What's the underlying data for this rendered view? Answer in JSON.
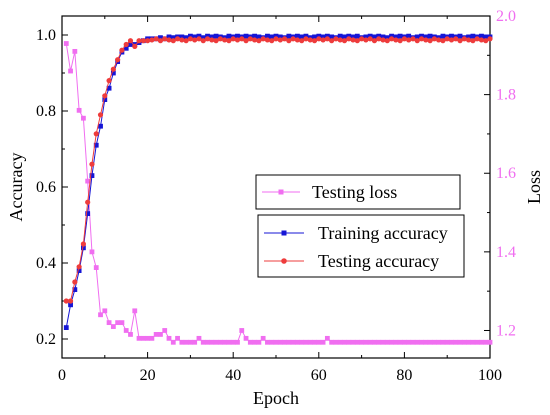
{
  "chart_data": {
    "type": "line",
    "xlabel": "Epoch",
    "ylabel_left": "Accuracy",
    "ylabel_right": "Loss",
    "xlim": [
      0,
      100
    ],
    "ylim_left": [
      0.15,
      1.05
    ],
    "ylim_right": [
      1.13,
      2.0
    ],
    "xticks": [
      0,
      20,
      40,
      60,
      80,
      100
    ],
    "yticks_left": [
      0.2,
      0.4,
      0.6,
      0.8,
      1.0
    ],
    "yticks_right": [
      1.2,
      1.4,
      1.6,
      1.8,
      2.0
    ],
    "xtick_labels": [
      "0",
      "20",
      "40",
      "60",
      "80",
      "100"
    ],
    "ytick_labels_left": [
      "0.2",
      "0.4",
      "0.6",
      "0.8",
      "1.0"
    ],
    "ytick_labels_right": [
      "1.2",
      "1.4",
      "1.6",
      "1.8",
      "2.0"
    ],
    "colors": {
      "training_accuracy": "#1515d6",
      "testing_accuracy": "#ee3c3c",
      "testing_loss": "#f06ef0",
      "right_axis": "#f06ef0",
      "axis": "#000000"
    },
    "legend_loss": {
      "label": "Testing loss"
    },
    "legend_acc": [
      {
        "label": "Training accuracy"
      },
      {
        "label": "Testing accuracy"
      }
    ],
    "series": [
      {
        "name": "Training accuracy",
        "axis": "left",
        "marker": "square",
        "x": [
          1,
          2,
          3,
          4,
          5,
          6,
          7,
          8,
          9,
          10,
          11,
          12,
          13,
          14,
          15,
          16,
          17,
          18,
          19,
          20,
          21,
          22,
          23,
          24,
          25,
          26,
          27,
          28,
          29,
          30,
          31,
          32,
          33,
          34,
          35,
          36,
          37,
          38,
          39,
          40,
          41,
          42,
          43,
          44,
          45,
          46,
          47,
          48,
          49,
          50,
          51,
          52,
          53,
          54,
          55,
          56,
          57,
          58,
          59,
          60,
          61,
          62,
          63,
          64,
          65,
          66,
          67,
          68,
          69,
          70,
          71,
          72,
          73,
          74,
          75,
          76,
          77,
          78,
          79,
          80,
          81,
          82,
          83,
          84,
          85,
          86,
          87,
          88,
          89,
          90,
          91,
          92,
          93,
          94,
          95,
          96,
          97,
          98,
          99,
          100
        ],
        "y": [
          0.23,
          0.29,
          0.33,
          0.38,
          0.44,
          0.53,
          0.63,
          0.71,
          0.76,
          0.83,
          0.86,
          0.9,
          0.93,
          0.955,
          0.965,
          0.975,
          0.975,
          0.98,
          0.985,
          0.99,
          0.99,
          0.99,
          0.993,
          0.99,
          0.995,
          0.993,
          0.995,
          0.995,
          0.993,
          0.997,
          0.995,
          0.997,
          0.993,
          0.997,
          0.995,
          0.997,
          0.995,
          0.993,
          0.997,
          0.995,
          0.997,
          0.995,
          0.997,
          0.995,
          0.997,
          0.995,
          0.993,
          0.997,
          0.995,
          0.997,
          0.995,
          0.993,
          0.997,
          0.995,
          0.997,
          0.995,
          0.997,
          0.993,
          0.995,
          0.997,
          0.995,
          0.997,
          0.995,
          0.993,
          0.997,
          0.995,
          0.997,
          0.995,
          0.997,
          0.993,
          0.995,
          0.997,
          0.995,
          0.997,
          0.995,
          0.993,
          0.997,
          0.995,
          0.997,
          0.995,
          0.997,
          0.993,
          0.995,
          0.997,
          0.995,
          0.997,
          0.995,
          0.993,
          0.997,
          0.995,
          0.997,
          0.995,
          0.997,
          0.993,
          0.995,
          0.997,
          0.995,
          0.997,
          0.995,
          0.995
        ]
      },
      {
        "name": "Testing accuracy",
        "axis": "left",
        "marker": "circle",
        "x": [
          1,
          2,
          3,
          4,
          5,
          6,
          7,
          8,
          9,
          10,
          11,
          12,
          13,
          14,
          15,
          16,
          17,
          18,
          19,
          20,
          21,
          22,
          23,
          24,
          25,
          26,
          27,
          28,
          29,
          30,
          31,
          32,
          33,
          34,
          35,
          36,
          37,
          38,
          39,
          40,
          41,
          42,
          43,
          44,
          45,
          46,
          47,
          48,
          49,
          50,
          51,
          52,
          53,
          54,
          55,
          56,
          57,
          58,
          59,
          60,
          61,
          62,
          63,
          64,
          65,
          66,
          67,
          68,
          69,
          70,
          71,
          72,
          73,
          74,
          75,
          76,
          77,
          78,
          79,
          80,
          81,
          82,
          83,
          84,
          85,
          86,
          87,
          88,
          89,
          90,
          91,
          92,
          93,
          94,
          95,
          96,
          97,
          98,
          99,
          100
        ],
        "y": [
          0.3,
          0.3,
          0.35,
          0.39,
          0.45,
          0.56,
          0.66,
          0.74,
          0.79,
          0.84,
          0.88,
          0.91,
          0.935,
          0.96,
          0.975,
          0.985,
          0.97,
          0.985,
          0.985,
          0.985,
          0.987,
          0.99,
          0.985,
          0.99,
          0.987,
          0.985,
          0.99,
          0.987,
          0.985,
          0.99,
          0.987,
          0.99,
          0.985,
          0.99,
          0.987,
          0.985,
          0.99,
          0.987,
          0.985,
          0.99,
          0.987,
          0.99,
          0.985,
          0.99,
          0.987,
          0.985,
          0.99,
          0.987,
          0.985,
          0.99,
          0.987,
          0.99,
          0.985,
          0.99,
          0.987,
          0.985,
          0.99,
          0.987,
          0.985,
          0.99,
          0.987,
          0.99,
          0.985,
          0.99,
          0.987,
          0.985,
          0.99,
          0.987,
          0.985,
          0.99,
          0.987,
          0.99,
          0.985,
          0.99,
          0.987,
          0.985,
          0.99,
          0.987,
          0.985,
          0.99,
          0.987,
          0.99,
          0.985,
          0.99,
          0.987,
          0.985,
          0.99,
          0.987,
          0.985,
          0.99,
          0.987,
          0.99,
          0.985,
          0.99,
          0.987,
          0.985,
          0.99,
          0.987,
          0.985,
          0.99
        ]
      },
      {
        "name": "Testing loss",
        "axis": "right",
        "marker": "square",
        "x": [
          1,
          2,
          3,
          4,
          5,
          6,
          7,
          8,
          9,
          10,
          11,
          12,
          13,
          14,
          15,
          16,
          17,
          18,
          19,
          20,
          21,
          22,
          23,
          24,
          25,
          26,
          27,
          28,
          29,
          30,
          31,
          32,
          33,
          34,
          35,
          36,
          37,
          38,
          39,
          40,
          41,
          42,
          43,
          44,
          45,
          46,
          47,
          48,
          49,
          50,
          51,
          52,
          53,
          54,
          55,
          56,
          57,
          58,
          59,
          60,
          61,
          62,
          63,
          64,
          65,
          66,
          67,
          68,
          69,
          70,
          71,
          72,
          73,
          74,
          75,
          76,
          77,
          78,
          79,
          80,
          81,
          82,
          83,
          84,
          85,
          86,
          87,
          88,
          89,
          90,
          91,
          92,
          93,
          94,
          95,
          96,
          97,
          98,
          99,
          100
        ],
        "y": [
          1.93,
          1.86,
          1.91,
          1.76,
          1.74,
          1.58,
          1.4,
          1.36,
          1.24,
          1.25,
          1.22,
          1.21,
          1.22,
          1.22,
          1.2,
          1.19,
          1.25,
          1.18,
          1.18,
          1.18,
          1.18,
          1.19,
          1.19,
          1.2,
          1.18,
          1.17,
          1.18,
          1.17,
          1.17,
          1.17,
          1.17,
          1.18,
          1.17,
          1.17,
          1.17,
          1.17,
          1.17,
          1.17,
          1.17,
          1.17,
          1.17,
          1.2,
          1.18,
          1.17,
          1.17,
          1.17,
          1.18,
          1.17,
          1.17,
          1.17,
          1.17,
          1.17,
          1.17,
          1.17,
          1.17,
          1.17,
          1.17,
          1.17,
          1.17,
          1.17,
          1.17,
          1.18,
          1.17,
          1.17,
          1.17,
          1.17,
          1.17,
          1.17,
          1.17,
          1.17,
          1.17,
          1.17,
          1.17,
          1.17,
          1.17,
          1.17,
          1.17,
          1.17,
          1.17,
          1.17,
          1.17,
          1.17,
          1.17,
          1.17,
          1.17,
          1.17,
          1.17,
          1.17,
          1.17,
          1.17,
          1.17,
          1.17,
          1.17,
          1.17,
          1.17,
          1.17,
          1.17,
          1.17,
          1.17,
          1.17
        ]
      }
    ]
  }
}
